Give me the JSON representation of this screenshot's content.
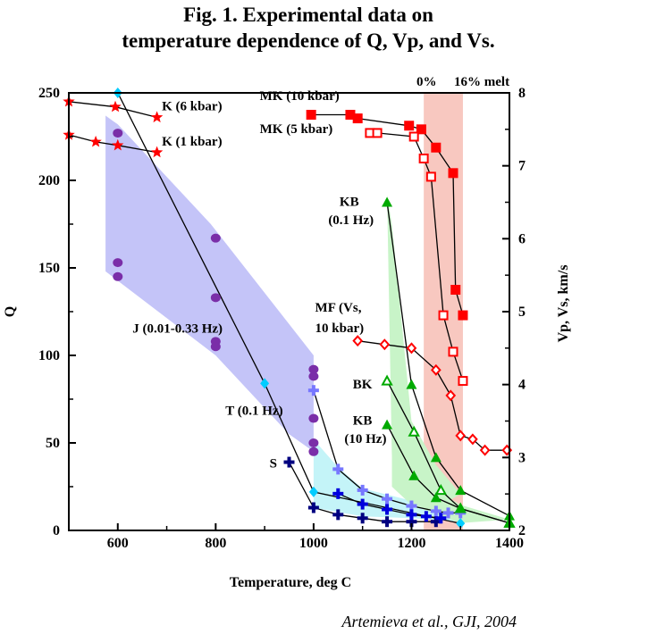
{
  "chart_data": {
    "type": "scatter",
    "title_lines": [
      "Fig. 1. Experimental data on",
      "temperature dependence of Q, Vp, and Vs."
    ],
    "xlabel": "Temperature, deg C",
    "ylabel": "Q",
    "y2label": "Vp, Vs, km/s",
    "xlim": [
      500,
      1400
    ],
    "ylim": [
      0,
      250
    ],
    "y2lim": [
      2,
      8
    ],
    "xticks": [
      600,
      800,
      1000,
      1200,
      1400
    ],
    "yticks": [
      0,
      50,
      100,
      150,
      200,
      250
    ],
    "y2ticks": [
      2,
      3,
      4,
      5,
      6,
      7,
      8
    ],
    "grid": false,
    "melt_band": {
      "x": [
        1225,
        1305
      ],
      "label_0": "0%",
      "label_16": "16% melt",
      "color": "#f8c8c0"
    },
    "credit": "Artemieva et al., GJI, 2004",
    "shaded_regions": [
      {
        "name": "J",
        "color": "#c4c4f8",
        "points": [
          [
            575,
            237
          ],
          [
            600,
            232
          ],
          [
            790,
            175
          ],
          [
            1000,
            100
          ],
          [
            1000,
            45
          ],
          [
            950,
            55
          ],
          [
            800,
            100
          ],
          [
            575,
            148
          ]
        ]
      },
      {
        "name": "T",
        "color": "#c4f4f8",
        "points": [
          [
            1000,
            52
          ],
          [
            1050,
            36
          ],
          [
            1100,
            24
          ],
          [
            1200,
            17
          ],
          [
            1300,
            10
          ],
          [
            1300,
            5
          ],
          [
            1200,
            7
          ],
          [
            1100,
            8
          ],
          [
            1000,
            13
          ]
        ]
      },
      {
        "name": "KB-BK",
        "color": "#c8f4c8",
        "points": [
          [
            1160,
            4.2
          ],
          [
            1200,
            3.0
          ],
          [
            1250,
            2.55
          ],
          [
            1300,
            2.35
          ],
          [
            1400,
            2.15
          ],
          [
            1300,
            2.1
          ],
          [
            1200,
            2.35
          ],
          [
            1160,
            2.6
          ]
        ],
        "axis": "right"
      },
      {
        "name": "MF-KB10",
        "color": "#c8f4c8",
        "points": [
          [
            1150,
            6.6
          ],
          [
            1160,
            6.2
          ],
          [
            1200,
            3.5
          ],
          [
            1250,
            2.9
          ],
          [
            1300,
            2.5
          ],
          [
            1250,
            2.3
          ],
          [
            1200,
            2.5
          ],
          [
            1160,
            3.0
          ]
        ],
        "axis": "right"
      }
    ],
    "series": [
      {
        "name": "K (6 kbar)",
        "axis": "left",
        "marker": "star",
        "color": "#ff0000",
        "x": [
          500,
          595,
          680
        ],
        "y": [
          245,
          242,
          236
        ]
      },
      {
        "name": "K (1 kbar)",
        "axis": "left",
        "marker": "star",
        "color": "#ff0000",
        "x": [
          500,
          555,
          600,
          680
        ],
        "y": [
          226,
          222,
          220,
          216
        ]
      },
      {
        "name": "J (0.01-0.33 Hz)",
        "axis": "left",
        "marker": "circle",
        "color": "#7a2ea8",
        "x": [
          600,
          600,
          600,
          800,
          800,
          800,
          800,
          1000,
          1000,
          1000,
          1000,
          1000
        ],
        "y": [
          227,
          153,
          145,
          167,
          133,
          108,
          105,
          92,
          88,
          64,
          50,
          45
        ]
      },
      {
        "name": "T (0.1 Hz)",
        "axis": "left",
        "marker": "diamond",
        "color": "#00ccff",
        "x": [
          600,
          900,
          1000,
          1300
        ],
        "y": [
          250,
          84,
          22,
          4
        ]
      },
      {
        "name": "",
        "axis": "left",
        "marker": "cross",
        "color": "#7777ff",
        "x": [
          1000,
          1050,
          1100,
          1150,
          1200,
          1250,
          1275,
          1300
        ],
        "y": [
          80,
          35,
          23,
          18,
          14,
          11,
          10,
          10
        ]
      },
      {
        "name": "S",
        "axis": "left",
        "marker": "cross",
        "color": "#000080",
        "x": [
          950,
          1000,
          1050,
          1100,
          1150,
          1200,
          1250
        ],
        "y": [
          39,
          13,
          9,
          7,
          5,
          5,
          5
        ]
      },
      {
        "name": "",
        "axis": "left",
        "marker": "cross",
        "color": "#0000dd",
        "x": [
          1050,
          1100,
          1150,
          1200,
          1230,
          1260
        ],
        "y": [
          21,
          15,
          12,
          9,
          8,
          7
        ]
      },
      {
        "name": "MK (10 kbar)",
        "axis": "right",
        "marker": "square-filled",
        "color": "#ff0000",
        "x": [
          995,
          1075,
          1090,
          1195,
          1220,
          1250,
          1285,
          1290,
          1305
        ],
        "y": [
          7.7,
          7.7,
          7.65,
          7.55,
          7.5,
          7.25,
          6.9,
          5.3,
          4.95
        ]
      },
      {
        "name": "MK (5 kbar)",
        "axis": "right",
        "marker": "square-open",
        "color": "#ff0000",
        "x": [
          1115,
          1130,
          1205,
          1225,
          1240,
          1265,
          1285,
          1305
        ],
        "y": [
          7.45,
          7.45,
          7.4,
          7.1,
          6.85,
          4.95,
          4.45,
          4.05
        ]
      },
      {
        "name": "MF (Vs, 10 kbar)",
        "axis": "right",
        "marker": "diamond-open",
        "color": "#ff0000",
        "x": [
          1090,
          1145,
          1200,
          1250,
          1280,
          1300,
          1325,
          1350,
          1395
        ],
        "y": [
          4.6,
          4.55,
          4.5,
          4.2,
          3.85,
          3.3,
          3.25,
          3.1,
          3.1
        ]
      },
      {
        "name": "KB (0.1 Hz)",
        "axis": "right",
        "marker": "triangle-filled",
        "color": "#00aa00",
        "x": [
          1150,
          1200,
          1250,
          1300,
          1400
        ],
        "y": [
          6.5,
          4.0,
          3.0,
          2.55,
          2.2
        ]
      },
      {
        "name": "BK",
        "axis": "right",
        "marker": "triangle-open",
        "color": "#00aa00",
        "x": [
          1150,
          1205,
          1260,
          1300,
          1400
        ],
        "y": [
          4.05,
          3.35,
          2.55,
          2.3,
          2.1
        ]
      },
      {
        "name": "KB (10 Hz)",
        "axis": "right",
        "marker": "triangle-filled",
        "color": "#00aa00",
        "x": [
          1150,
          1205,
          1250,
          1300,
          1400
        ],
        "y": [
          3.45,
          2.75,
          2.45,
          2.3,
          2.1
        ]
      }
    ],
    "annotations": [
      {
        "text": "K (6 kbar)",
        "x": 690,
        "y": 240,
        "axis": "left"
      },
      {
        "text": "K (1 kbar)",
        "x": 690,
        "y": 220,
        "axis": "left"
      },
      {
        "text": "MK (10 kbar)",
        "x": 890,
        "y": 7.9,
        "axis": "right"
      },
      {
        "text": "MK (5 kbar)",
        "x": 890,
        "y": 7.45,
        "axis": "right"
      },
      {
        "text": "KB",
        "x": 1053,
        "y": 6.45,
        "axis": "right"
      },
      {
        "text": "(0.1 Hz)",
        "x": 1030,
        "y": 6.2,
        "axis": "right"
      },
      {
        "text": "MF (Vs,",
        "x": 1003,
        "y": 5.0,
        "axis": "right"
      },
      {
        "text": "10 kbar)",
        "x": 1003,
        "y": 4.72,
        "axis": "right"
      },
      {
        "text": "BK",
        "x": 1080,
        "y": 3.95,
        "axis": "right"
      },
      {
        "text": "KB",
        "x": 1080,
        "y": 3.45,
        "axis": "right"
      },
      {
        "text": "(10 Hz)",
        "x": 1063,
        "y": 3.2,
        "axis": "right"
      },
      {
        "text": "J (0.01-0.33 Hz)",
        "x": 630,
        "y": 113,
        "axis": "left"
      },
      {
        "text": "T (0.1 Hz)",
        "x": 820,
        "y": 66,
        "axis": "left"
      },
      {
        "text": "S",
        "x": 910,
        "y": 36,
        "axis": "left"
      }
    ]
  }
}
